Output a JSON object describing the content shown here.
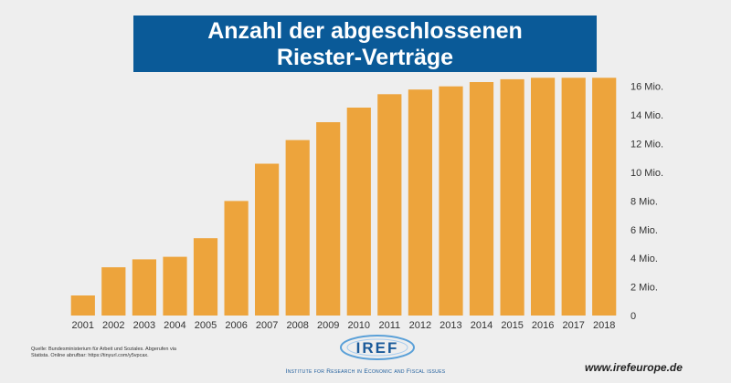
{
  "title": {
    "line1": "Anzahl der abgeschlossenen",
    "line2": "Riester-Verträge"
  },
  "chart_data": {
    "type": "bar",
    "categories": [
      "2001",
      "2002",
      "2003",
      "2004",
      "2005",
      "2006",
      "2007",
      "2008",
      "2009",
      "2010",
      "2011",
      "2012",
      "2013",
      "2014",
      "2015",
      "2016",
      "2017",
      "2018"
    ],
    "values": [
      1.4,
      3.37,
      3.92,
      4.1,
      5.4,
      8.0,
      10.6,
      12.25,
      13.5,
      14.52,
      15.45,
      15.78,
      16.0,
      16.3,
      16.5,
      16.6,
      16.6,
      16.6
    ],
    "unit": "Mio.",
    "ylim": [
      0,
      17
    ],
    "yticks": [
      0,
      2,
      4,
      6,
      8,
      10,
      12,
      14,
      16
    ],
    "ytick_labels": [
      "0",
      "2 Mio.",
      "4 Mio.",
      "6 Mio.",
      "8 Mio.",
      "10 Mio.",
      "12 Mio.",
      "14 Mio.",
      "16 Mio."
    ],
    "y_axis_position": "right",
    "grid": false,
    "bar_color": "#eda43c"
  },
  "source": {
    "line1": "Quelle: Bundesministerium für Arbeit und Soziales. Abgerufen via",
    "line2": "Statista. Online abrufbar: https://tinyurl.com/y5vpcax."
  },
  "logo": {
    "text": "IREF",
    "subtitle": "Institute for Research in Economic and Fiscal issues"
  },
  "website": "www.irefeurope.de",
  "colors": {
    "title_bg": "#0a5a98",
    "bar": "#eda43c",
    "background": "#eeeeee"
  }
}
